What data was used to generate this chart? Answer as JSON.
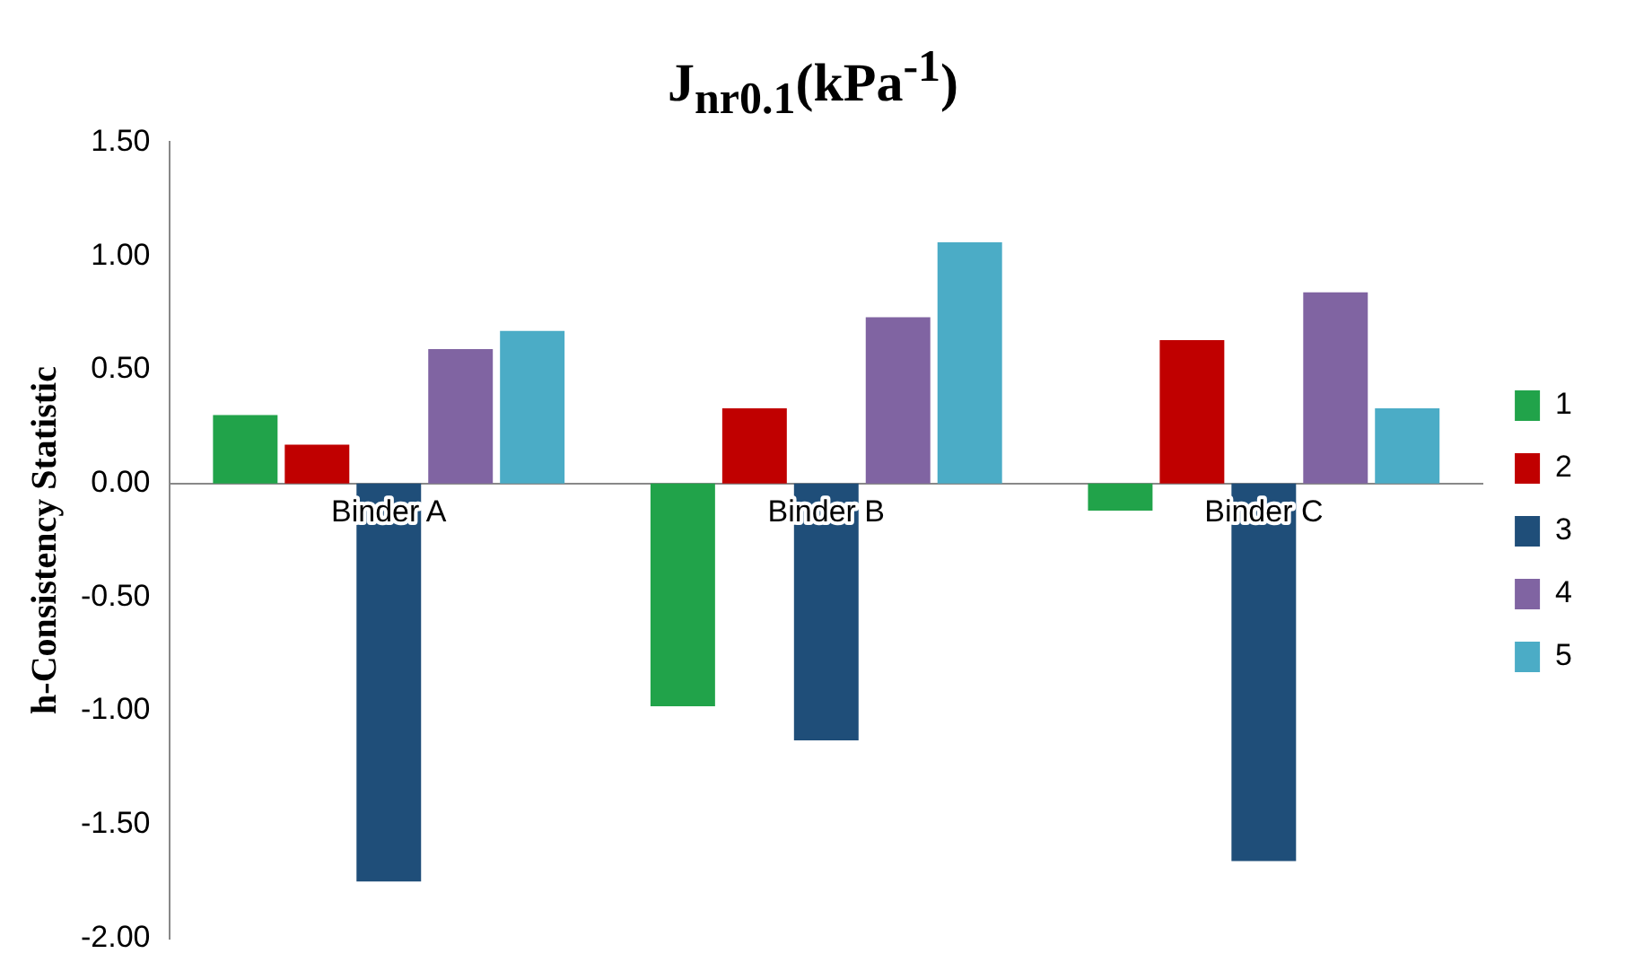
{
  "chart_data": {
    "type": "bar",
    "title": "J$_{nr0.1}$(kPa$^{-1}$)",
    "ylabel": "h-Consistency Statistic",
    "categories": [
      "Binder A",
      "Binder B",
      "Binder C"
    ],
    "series": [
      {
        "name": "1",
        "color": "#21a34a",
        "values": [
          0.3,
          -0.98,
          -0.12
        ]
      },
      {
        "name": "2",
        "color": "#c00000",
        "values": [
          0.17,
          0.33,
          0.63
        ]
      },
      {
        "name": "3",
        "color": "#1f4e79",
        "values": [
          -1.75,
          -1.13,
          -1.66
        ]
      },
      {
        "name": "4",
        "color": "#8064a2",
        "values": [
          0.59,
          0.73,
          0.84
        ]
      },
      {
        "name": "5",
        "color": "#4bacc6",
        "values": [
          0.67,
          1.06,
          0.33
        ]
      }
    ],
    "ylim": [
      -2,
      1.5
    ],
    "yticks": [
      {
        "value": -2,
        "label": "-2.00"
      },
      {
        "value": -1.5,
        "label": "-1.50"
      },
      {
        "value": -1,
        "label": "-1.00"
      },
      {
        "value": -0.5,
        "label": "-0.50"
      },
      {
        "value": 0,
        "label": "0.00"
      },
      {
        "value": 0.5,
        "label": "0.50"
      },
      {
        "value": 1,
        "label": "1.00"
      },
      {
        "value": 1.5,
        "label": "1.50"
      }
    ],
    "grid": false,
    "legend": "right"
  }
}
